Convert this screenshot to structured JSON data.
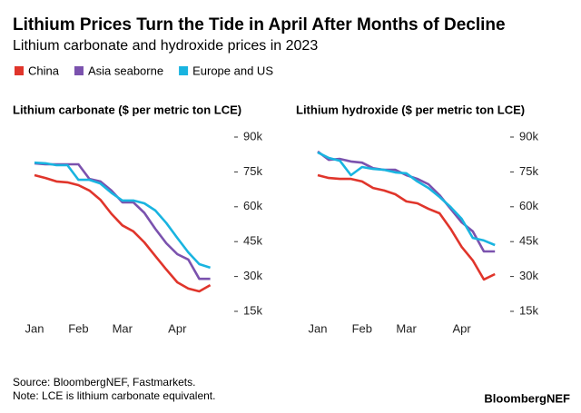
{
  "title": "Lithium Prices Turn the Tide in April After Months of Decline",
  "subtitle": "Lithium carbonate and hydroxide prices in 2023",
  "source": "Source: BloombergNEF, Fastmarkets.",
  "note": "Note: LCE is lithium carbonate equivalent.",
  "brand": "BloombergNEF",
  "chart_data": [
    {
      "type": "line",
      "title": "Lithium carbonate ($ per metric ton LCE)",
      "categories": [
        "Jan",
        null,
        null,
        null,
        "Feb",
        null,
        null,
        null,
        "Mar",
        null,
        null,
        null,
        null,
        "Apr",
        null,
        null,
        null
      ],
      "ylim": [
        15000,
        90000
      ],
      "yticks": [
        {
          "value": 15000,
          "label": "15k"
        },
        {
          "value": 30000,
          "label": "30k"
        },
        {
          "value": 45000,
          "label": "45k"
        },
        {
          "value": 60000,
          "label": "60k"
        },
        {
          "value": 75000,
          "label": "75k"
        },
        {
          "value": 90000,
          "label": "90k"
        }
      ],
      "grid": false,
      "series": [
        {
          "name": "China",
          "color": "#e0352b",
          "values": [
            73600,
            72400,
            70900,
            70500,
            69300,
            67000,
            63000,
            57000,
            52000,
            49400,
            44700,
            38800,
            33000,
            27500,
            24800,
            23600,
            26300
          ]
        },
        {
          "name": "Asia seaborne",
          "color": "#7b52ae",
          "values": [
            78700,
            78300,
            78300,
            78300,
            78300,
            72000,
            70900,
            67000,
            61900,
            61900,
            57400,
            50500,
            44300,
            39600,
            37300,
            29000,
            29000
          ]
        },
        {
          "name": "Europe and US",
          "color": "#19b4e0",
          "values": [
            79000,
            78700,
            77900,
            77900,
            71600,
            71600,
            70000,
            66000,
            62700,
            62700,
            61500,
            58400,
            53000,
            46600,
            40400,
            35300,
            33800
          ]
        }
      ]
    },
    {
      "type": "line",
      "title": "Lithium hydroxide ($ per metric ton LCE)",
      "categories": [
        "Jan",
        null,
        null,
        null,
        "Feb",
        null,
        null,
        null,
        "Mar",
        null,
        null,
        null,
        null,
        "Apr",
        null,
        null,
        null
      ],
      "ylim": [
        15000,
        90000
      ],
      "yticks": [
        {
          "value": 15000,
          "label": "15k"
        },
        {
          "value": 30000,
          "label": "30k"
        },
        {
          "value": 45000,
          "label": "45k"
        },
        {
          "value": 60000,
          "label": "60k"
        },
        {
          "value": 75000,
          "label": "75k"
        },
        {
          "value": 90000,
          "label": "90k"
        }
      ],
      "grid": false,
      "series": [
        {
          "color": "#e0352b",
          "values": [
            73600,
            72400,
            72000,
            72000,
            70900,
            68100,
            67000,
            65400,
            62300,
            61500,
            59100,
            57200,
            50500,
            42700,
            36900,
            28700,
            31000
          ]
        },
        {
          "color": "#7b52ae",
          "values": [
            83800,
            80200,
            80600,
            79500,
            79000,
            76600,
            75900,
            75900,
            73600,
            72000,
            69700,
            65000,
            59100,
            53300,
            49400,
            40800,
            40800
          ]
        },
        {
          "color": "#19b4e0",
          "values": [
            83400,
            81000,
            79800,
            73600,
            77100,
            76300,
            75900,
            74800,
            74400,
            70900,
            68100,
            64200,
            59900,
            54800,
            46600,
            45500,
            43500
          ]
        }
      ]
    }
  ]
}
